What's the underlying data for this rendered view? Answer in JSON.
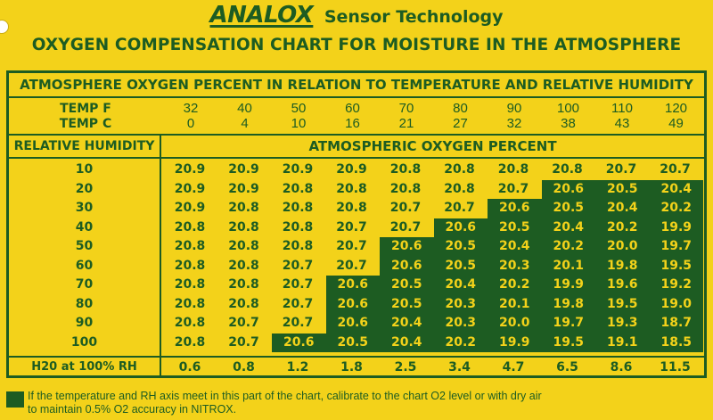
{
  "brand": {
    "name": "ANALOX",
    "tagline": "Sensor Technology"
  },
  "title": "OXYGEN COMPENSATION CHART FOR MOISTURE IN THE ATMOSPHERE",
  "chart": {
    "subtitle": "ATMOSPHERE OXYGEN PERCENT IN RELATION TO TEMPERATURE AND RELATIVE HUMIDITY",
    "temp_f_label": "TEMP F",
    "temp_c_label": "TEMP C",
    "temps_f": [
      "32",
      "40",
      "50",
      "60",
      "70",
      "80",
      "90",
      "100",
      "110",
      "120"
    ],
    "temps_c": [
      "0",
      "4",
      "10",
      "16",
      "21",
      "27",
      "32",
      "38",
      "43",
      "49"
    ],
    "rh_label": "RELATIVE HUMIDITY",
    "aop_label": "ATMOSPHERIC OXYGEN PERCENT",
    "rows": [
      {
        "rh": "10",
        "values": [
          "20.9",
          "20.9",
          "20.9",
          "20.9",
          "20.8",
          "20.8",
          "20.8",
          "20.8",
          "20.7",
          "20.7"
        ],
        "shade_from": 10
      },
      {
        "rh": "20",
        "values": [
          "20.9",
          "20.9",
          "20.8",
          "20.8",
          "20.8",
          "20.8",
          "20.7",
          "20.6",
          "20.5",
          "20.4"
        ],
        "shade_from": 7
      },
      {
        "rh": "30",
        "values": [
          "20.9",
          "20.8",
          "20.8",
          "20.8",
          "20.7",
          "20.7",
          "20.6",
          "20.5",
          "20.4",
          "20.2"
        ],
        "shade_from": 6
      },
      {
        "rh": "40",
        "values": [
          "20.8",
          "20.8",
          "20.8",
          "20.7",
          "20.7",
          "20.6",
          "20.5",
          "20.4",
          "20.2",
          "19.9"
        ],
        "shade_from": 5
      },
      {
        "rh": "50",
        "values": [
          "20.8",
          "20.8",
          "20.8",
          "20.7",
          "20.6",
          "20.5",
          "20.4",
          "20.2",
          "20.0",
          "19.7"
        ],
        "shade_from": 4
      },
      {
        "rh": "60",
        "values": [
          "20.8",
          "20.8",
          "20.7",
          "20.7",
          "20.6",
          "20.5",
          "20.3",
          "20.1",
          "19.8",
          "19.5"
        ],
        "shade_from": 4
      },
      {
        "rh": "70",
        "values": [
          "20.8",
          "20.8",
          "20.7",
          "20.6",
          "20.5",
          "20.4",
          "20.2",
          "19.9",
          "19.6",
          "19.2"
        ],
        "shade_from": 3
      },
      {
        "rh": "80",
        "values": [
          "20.8",
          "20.8",
          "20.7",
          "20.6",
          "20.5",
          "20.3",
          "20.1",
          "19.8",
          "19.5",
          "19.0"
        ],
        "shade_from": 3
      },
      {
        "rh": "90",
        "values": [
          "20.8",
          "20.7",
          "20.7",
          "20.6",
          "20.4",
          "20.3",
          "20.0",
          "19.7",
          "19.3",
          "18.7"
        ],
        "shade_from": 3
      },
      {
        "rh": "100",
        "values": [
          "20.8",
          "20.7",
          "20.6",
          "20.5",
          "20.4",
          "20.2",
          "19.9",
          "19.5",
          "19.1",
          "18.5"
        ],
        "shade_from": 2
      }
    ],
    "h2o_label": "H20 at 100% RH",
    "h2o_values": [
      "0.6",
      "0.8",
      "1.2",
      "1.8",
      "2.5",
      "3.4",
      "4.7",
      "6.5",
      "8.6",
      "11.5"
    ]
  },
  "legend": {
    "line1": "If the temperature and RH axis meet in this part of the chart, calibrate to the chart O2 level or with dry air",
    "line2": "to maintain 0.5% O2 accuracy in NITROX."
  },
  "colors": {
    "background": "#f3d21a",
    "ink": "#1d5c22"
  }
}
